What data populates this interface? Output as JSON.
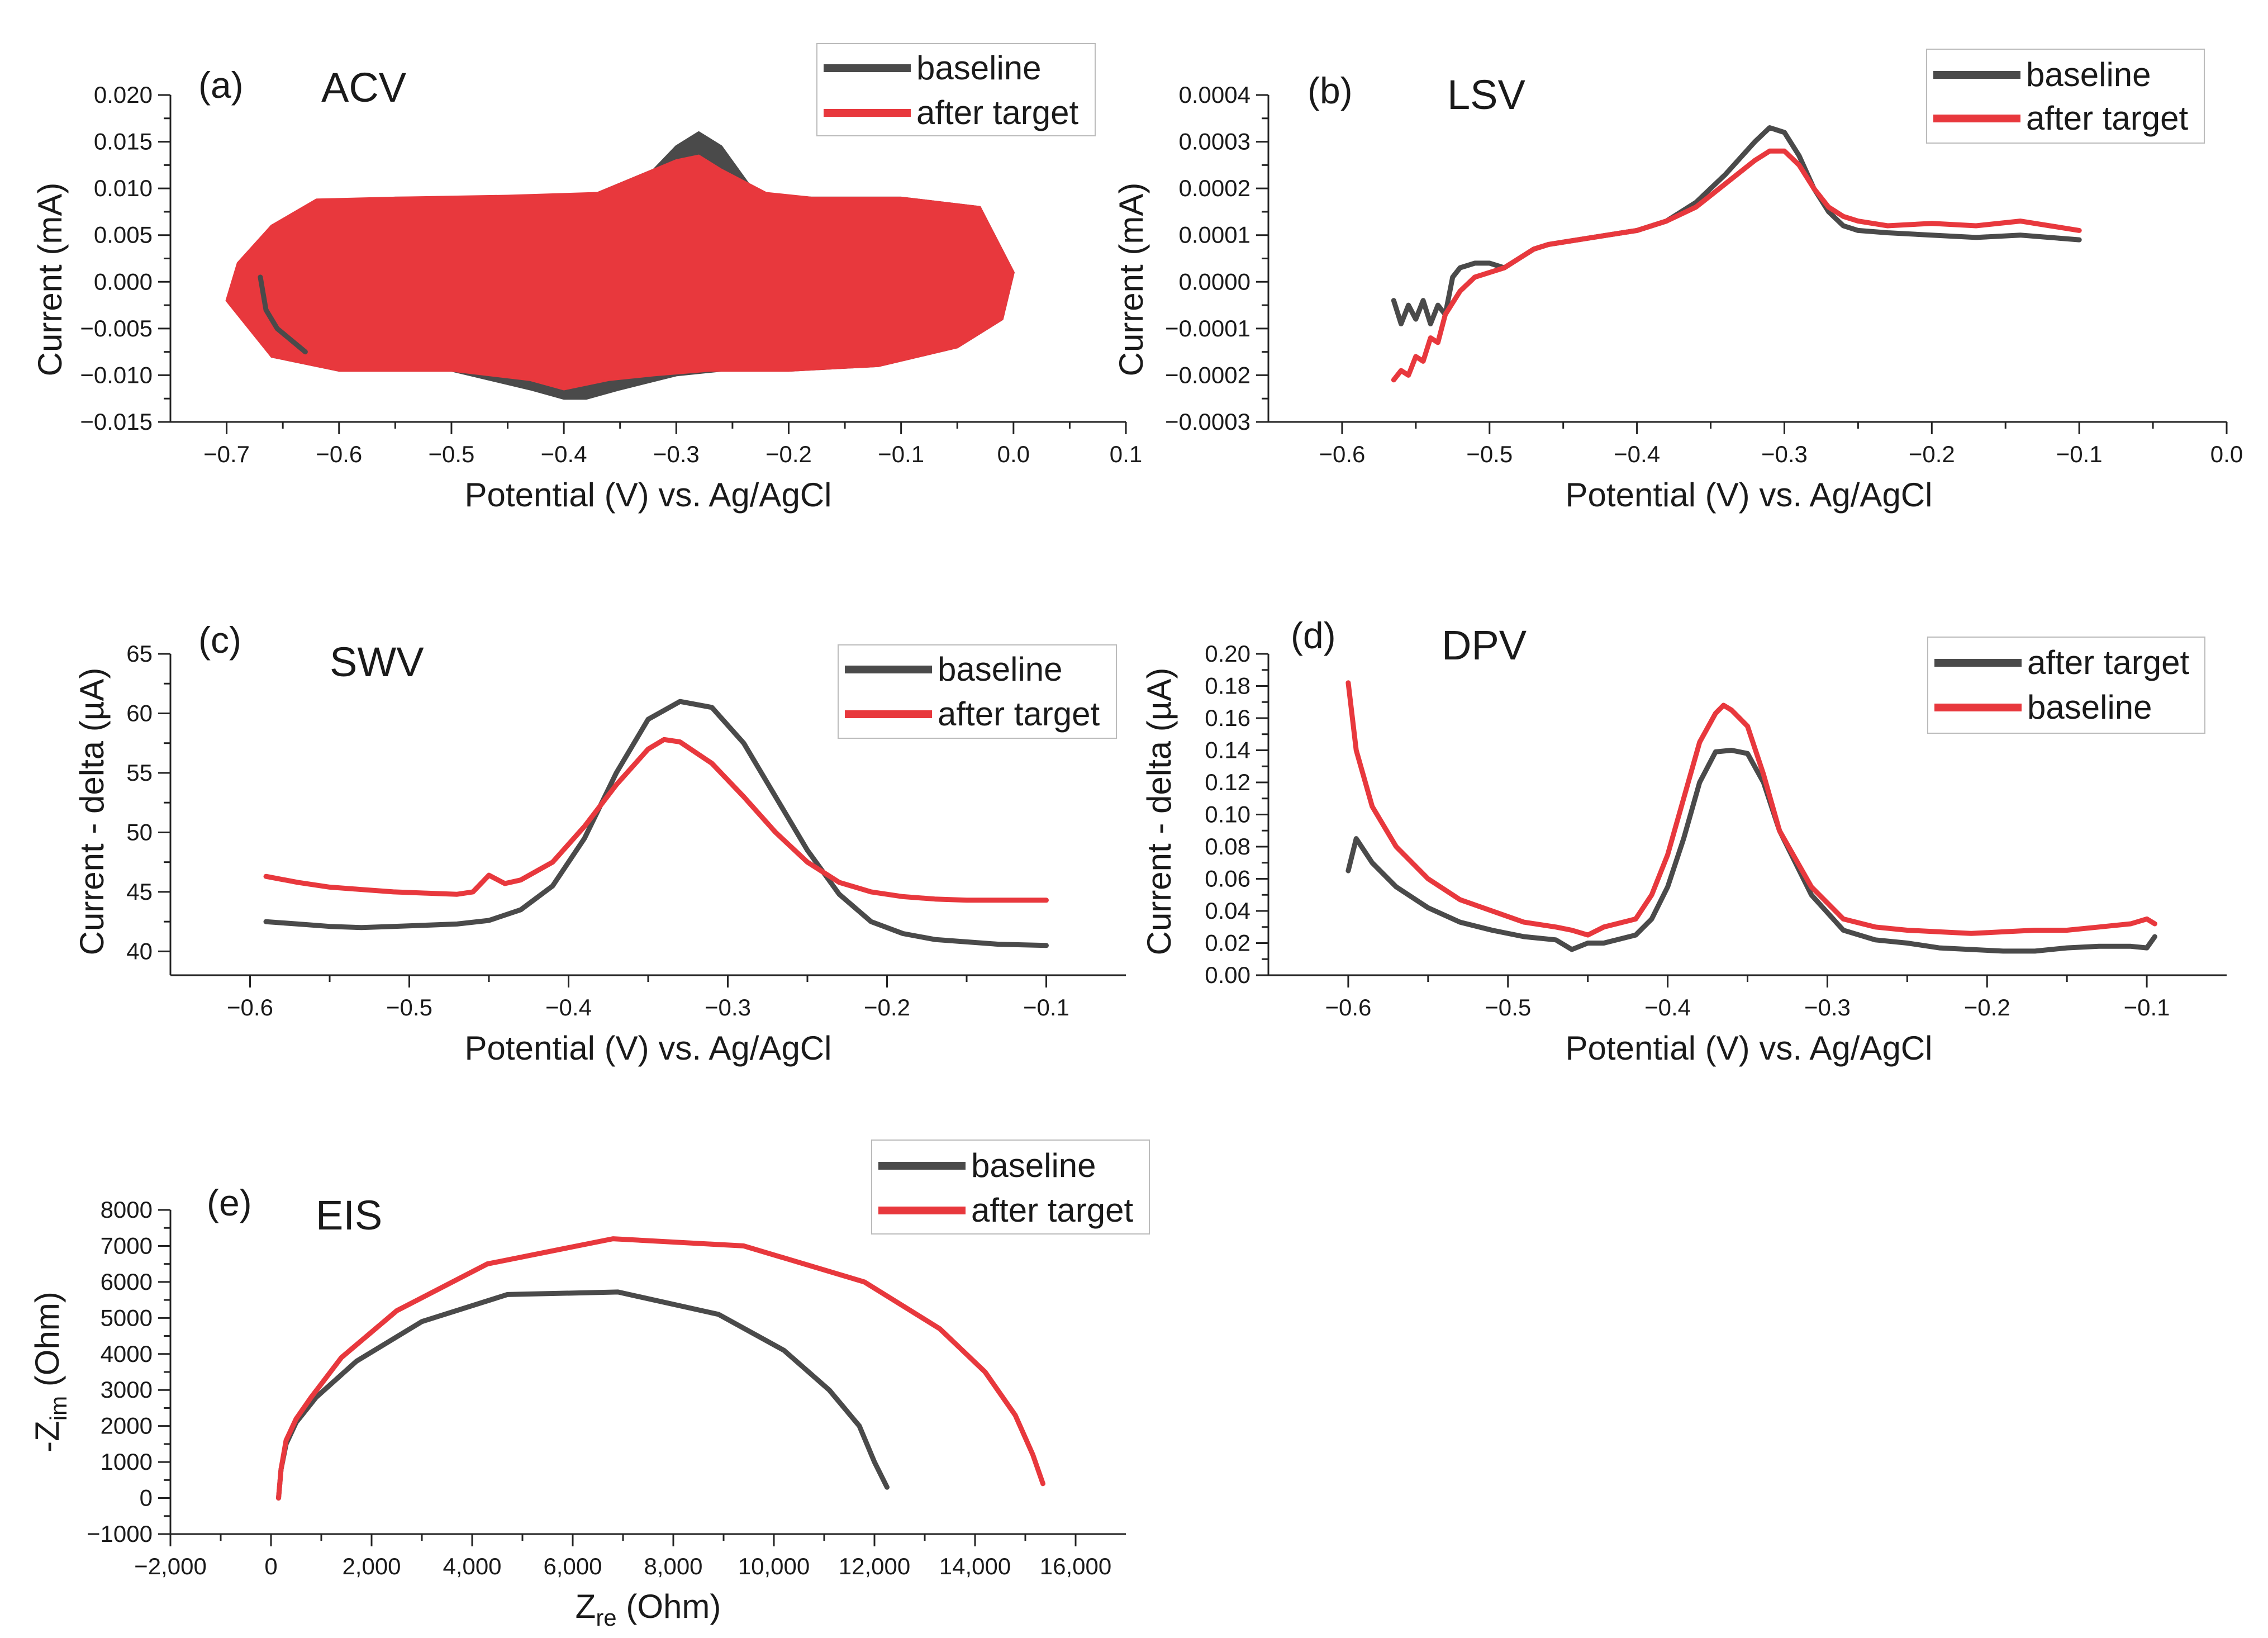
{
  "colors": {
    "baseline": "#4a4a4a",
    "after_target": "#e8383d",
    "axis": "#222222"
  },
  "chart_data": [
    {
      "id": "a",
      "type": "line",
      "panel_label": "(a)",
      "title": "ACV",
      "xlabel": "Potential (V) vs. Ag/AgCl",
      "ylabel": "Current (mA)",
      "xlim": [
        -0.75,
        0.1
      ],
      "ylim": [
        -0.015,
        0.02
      ],
      "xticks": [
        -0.7,
        -0.6,
        -0.5,
        -0.4,
        -0.3,
        -0.2,
        -0.1,
        0.0,
        0.1
      ],
      "xtick_labels": [
        "−0.7",
        "−0.6",
        "−0.5",
        "−0.4",
        "−0.3",
        "−0.2",
        "−0.1",
        "0.0",
        "0.1"
      ],
      "yticks": [
        -0.015,
        -0.01,
        -0.005,
        0,
        0.005,
        0.01,
        0.015,
        0.02
      ],
      "ytick_labels": [
        "−0.015",
        "−0.010",
        "−0.005",
        "0.000",
        "0.005",
        "0.010",
        "0.015",
        "0.020"
      ],
      "legend": [
        "baseline",
        "after target"
      ],
      "series": [
        {
          "name": "baseline",
          "color_key": "baseline",
          "fill": true,
          "x": [
            -0.69,
            -0.68,
            -0.66,
            -0.62,
            -0.55,
            -0.45,
            -0.37,
            -0.32,
            -0.3,
            -0.28,
            -0.26,
            -0.23,
            -0.18,
            -0.1,
            -0.03,
            0.0,
            -0.01,
            -0.05,
            -0.12,
            -0.2,
            -0.26,
            -0.3,
            -0.35,
            -0.38,
            -0.4,
            -0.43,
            -0.5,
            -0.6,
            -0.66,
            -0.69
          ],
          "y": [
            -0.002,
            0.003,
            0.006,
            0.0085,
            0.009,
            0.009,
            0.0095,
            0.012,
            0.0145,
            0.016,
            0.0145,
            0.0095,
            0.009,
            0.009,
            0.008,
            0.001,
            -0.004,
            -0.007,
            -0.009,
            -0.0095,
            -0.0095,
            -0.01,
            -0.0115,
            -0.0125,
            -0.0125,
            -0.0115,
            -0.0095,
            -0.0095,
            -0.008,
            -0.002
          ]
        },
        {
          "name": "after target",
          "color_key": "after_target",
          "fill": true,
          "x": [
            -0.7,
            -0.69,
            -0.66,
            -0.62,
            -0.55,
            -0.45,
            -0.37,
            -0.33,
            -0.3,
            -0.28,
            -0.26,
            -0.22,
            -0.18,
            -0.1,
            -0.03,
            0.0,
            -0.01,
            -0.05,
            -0.12,
            -0.2,
            -0.27,
            -0.32,
            -0.36,
            -0.4,
            -0.43,
            -0.5,
            -0.6,
            -0.66,
            -0.7
          ],
          "y": [
            -0.002,
            0.002,
            0.006,
            0.0088,
            0.009,
            0.0092,
            0.0095,
            0.0115,
            0.013,
            0.0135,
            0.012,
            0.0095,
            0.009,
            0.009,
            0.008,
            0.001,
            -0.004,
            -0.007,
            -0.009,
            -0.0095,
            -0.0095,
            -0.01,
            -0.0105,
            -0.0115,
            -0.0105,
            -0.0095,
            -0.0095,
            -0.008,
            -0.002
          ]
        },
        {
          "name": "baseline",
          "color_key": "baseline",
          "fill": false,
          "x": [
            -0.67,
            -0.665,
            -0.655,
            -0.645,
            -0.63
          ],
          "y": [
            0.0005,
            -0.003,
            -0.005,
            -0.006,
            -0.0075
          ]
        }
      ]
    },
    {
      "id": "b",
      "type": "line",
      "panel_label": "(b)",
      "title": "LSV",
      "xlabel": "Potential (V) vs. Ag/AgCl",
      "ylabel": "Current (mA)",
      "xlim": [
        -0.65,
        0.0
      ],
      "ylim": [
        -0.0003,
        0.0004
      ],
      "xticks": [
        -0.6,
        -0.5,
        -0.4,
        -0.3,
        -0.2,
        -0.1,
        0.0
      ],
      "xtick_labels": [
        "−0.6",
        "−0.5",
        "−0.4",
        "−0.3",
        "−0.2",
        "−0.1",
        "0.0"
      ],
      "yticks": [
        -0.0003,
        -0.0002,
        -0.0001,
        0,
        0.0001,
        0.0002,
        0.0003,
        0.0004
      ],
      "ytick_labels": [
        "−0.0003",
        "−0.0002",
        "−0.0001",
        "0.0000",
        "0.0001",
        "0.0002",
        "0.0003",
        "0.0004"
      ],
      "legend": [
        "baseline",
        "after target"
      ],
      "series": [
        {
          "name": "baseline",
          "color_key": "baseline",
          "x": [
            -0.565,
            -0.56,
            -0.555,
            -0.55,
            -0.545,
            -0.54,
            -0.535,
            -0.53,
            -0.525,
            -0.52,
            -0.51,
            -0.5,
            -0.49,
            -0.48,
            -0.47,
            -0.46,
            -0.44,
            -0.42,
            -0.4,
            -0.38,
            -0.36,
            -0.34,
            -0.32,
            -0.31,
            -0.3,
            -0.29,
            -0.28,
            -0.27,
            -0.26,
            -0.25,
            -0.23,
            -0.2,
            -0.17,
            -0.14,
            -0.12,
            -0.1
          ],
          "y": [
            -4e-05,
            -9e-05,
            -5e-05,
            -8e-05,
            -4e-05,
            -9e-05,
            -5e-05,
            -7e-05,
            1e-05,
            3e-05,
            4e-05,
            4e-05,
            3e-05,
            5e-05,
            7e-05,
            8e-05,
            9e-05,
            0.0001,
            0.00011,
            0.00013,
            0.00017,
            0.00023,
            0.0003,
            0.00033,
            0.00032,
            0.00027,
            0.0002,
            0.00015,
            0.00012,
            0.00011,
            0.000105,
            0.0001,
            9.5e-05,
            0.0001,
            9.5e-05,
            9e-05
          ]
        },
        {
          "name": "after target",
          "color_key": "after_target",
          "x": [
            -0.565,
            -0.56,
            -0.555,
            -0.55,
            -0.545,
            -0.54,
            -0.535,
            -0.53,
            -0.52,
            -0.51,
            -0.5,
            -0.49,
            -0.48,
            -0.47,
            -0.46,
            -0.44,
            -0.42,
            -0.4,
            -0.38,
            -0.36,
            -0.34,
            -0.32,
            -0.31,
            -0.3,
            -0.29,
            -0.28,
            -0.27,
            -0.26,
            -0.25,
            -0.23,
            -0.2,
            -0.17,
            -0.14,
            -0.12,
            -0.1
          ],
          "y": [
            -0.00021,
            -0.00019,
            -0.0002,
            -0.00016,
            -0.00017,
            -0.00012,
            -0.00013,
            -7e-05,
            -2e-05,
            1e-05,
            2e-05,
            3e-05,
            5e-05,
            7e-05,
            8e-05,
            9e-05,
            0.0001,
            0.00011,
            0.00013,
            0.00016,
            0.00021,
            0.00026,
            0.00028,
            0.00028,
            0.00025,
            0.0002,
            0.00016,
            0.00014,
            0.00013,
            0.00012,
            0.000125,
            0.00012,
            0.00013,
            0.00012,
            0.00011
          ]
        }
      ]
    },
    {
      "id": "c",
      "type": "line",
      "panel_label": "(c)",
      "title": "SWV",
      "xlabel": "Potential (V) vs. Ag/AgCl",
      "ylabel": "Current - delta (µA)",
      "xlim": [
        -0.65,
        -0.05
      ],
      "ylim": [
        38,
        65
      ],
      "xticks": [
        -0.6,
        -0.5,
        -0.4,
        -0.3,
        -0.2,
        -0.1
      ],
      "xtick_labels": [
        "−0.6",
        "−0.5",
        "−0.4",
        "−0.3",
        "−0.2",
        "−0.1"
      ],
      "yticks": [
        40,
        45,
        50,
        55,
        60,
        65
      ],
      "ytick_labels": [
        "40",
        "45",
        "50",
        "55",
        "60",
        "65"
      ],
      "legend": [
        "baseline",
        "after target"
      ],
      "series": [
        {
          "name": "baseline",
          "color_key": "baseline",
          "x": [
            -0.59,
            -0.57,
            -0.55,
            -0.53,
            -0.51,
            -0.49,
            -0.47,
            -0.45,
            -0.43,
            -0.41,
            -0.39,
            -0.37,
            -0.35,
            -0.33,
            -0.31,
            -0.29,
            -0.27,
            -0.25,
            -0.23,
            -0.21,
            -0.19,
            -0.17,
            -0.15,
            -0.13,
            -0.1
          ],
          "y": [
            42.5,
            42.3,
            42.1,
            42.0,
            42.1,
            42.2,
            42.3,
            42.6,
            43.5,
            45.5,
            49.5,
            55.0,
            59.5,
            61.0,
            60.5,
            57.5,
            53.0,
            48.5,
            44.8,
            42.5,
            41.5,
            41.0,
            40.8,
            40.6,
            40.5
          ]
        },
        {
          "name": "after target",
          "color_key": "after_target",
          "x": [
            -0.59,
            -0.57,
            -0.55,
            -0.53,
            -0.51,
            -0.49,
            -0.47,
            -0.46,
            -0.45,
            -0.44,
            -0.43,
            -0.41,
            -0.39,
            -0.37,
            -0.35,
            -0.34,
            -0.33,
            -0.31,
            -0.29,
            -0.27,
            -0.25,
            -0.23,
            -0.21,
            -0.19,
            -0.17,
            -0.15,
            -0.13,
            -0.1
          ],
          "y": [
            46.3,
            45.8,
            45.4,
            45.2,
            45.0,
            44.9,
            44.8,
            45.0,
            46.4,
            45.7,
            46.0,
            47.5,
            50.5,
            54.0,
            57.0,
            57.8,
            57.6,
            55.8,
            53.0,
            50.0,
            47.5,
            45.8,
            45.0,
            44.6,
            44.4,
            44.3,
            44.3,
            44.3
          ]
        }
      ]
    },
    {
      "id": "d",
      "type": "line",
      "panel_label": "(d)",
      "title": "DPV",
      "xlabel": "Potential (V) vs. Ag/AgCl",
      "ylabel": "Current - delta (µA)",
      "xlim": [
        -0.65,
        -0.05
      ],
      "ylim": [
        0.0,
        0.2
      ],
      "xticks": [
        -0.6,
        -0.5,
        -0.4,
        -0.3,
        -0.2,
        -0.1
      ],
      "xtick_labels": [
        "−0.6",
        "−0.5",
        "−0.4",
        "−0.3",
        "−0.2",
        "−0.1"
      ],
      "yticks": [
        0.0,
        0.02,
        0.04,
        0.06,
        0.08,
        0.1,
        0.12,
        0.14,
        0.16,
        0.18,
        0.2
      ],
      "ytick_labels": [
        "0.00",
        "0.02",
        "0.04",
        "0.06",
        "0.08",
        "0.10",
        "0.12",
        "0.14",
        "0.16",
        "0.18",
        "0.20"
      ],
      "legend": [
        "after target",
        "baseline"
      ],
      "series": [
        {
          "name": "after target",
          "color_key": "baseline",
          "x": [
            -0.6,
            -0.595,
            -0.585,
            -0.57,
            -0.55,
            -0.53,
            -0.51,
            -0.49,
            -0.47,
            -0.46,
            -0.45,
            -0.44,
            -0.42,
            -0.41,
            -0.4,
            -0.39,
            -0.38,
            -0.37,
            -0.36,
            -0.35,
            -0.34,
            -0.33,
            -0.31,
            -0.29,
            -0.27,
            -0.25,
            -0.23,
            -0.21,
            -0.19,
            -0.17,
            -0.15,
            -0.13,
            -0.11,
            -0.1,
            -0.095
          ],
          "y": [
            0.065,
            0.085,
            0.07,
            0.055,
            0.042,
            0.033,
            0.028,
            0.024,
            0.022,
            0.016,
            0.02,
            0.02,
            0.025,
            0.035,
            0.055,
            0.085,
            0.12,
            0.139,
            0.14,
            0.138,
            0.12,
            0.09,
            0.05,
            0.028,
            0.022,
            0.02,
            0.017,
            0.016,
            0.015,
            0.015,
            0.017,
            0.018,
            0.018,
            0.017,
            0.024
          ]
        },
        {
          "name": "baseline",
          "color_key": "after_target",
          "x": [
            -0.6,
            -0.595,
            -0.585,
            -0.57,
            -0.55,
            -0.53,
            -0.51,
            -0.49,
            -0.47,
            -0.46,
            -0.45,
            -0.44,
            -0.42,
            -0.41,
            -0.4,
            -0.39,
            -0.38,
            -0.37,
            -0.365,
            -0.36,
            -0.35,
            -0.34,
            -0.33,
            -0.31,
            -0.29,
            -0.27,
            -0.25,
            -0.23,
            -0.21,
            -0.19,
            -0.17,
            -0.15,
            -0.13,
            -0.11,
            -0.1,
            -0.095
          ],
          "y": [
            0.182,
            0.14,
            0.105,
            0.08,
            0.06,
            0.047,
            0.04,
            0.033,
            0.03,
            0.028,
            0.025,
            0.03,
            0.035,
            0.05,
            0.075,
            0.11,
            0.145,
            0.163,
            0.168,
            0.165,
            0.155,
            0.125,
            0.09,
            0.055,
            0.035,
            0.03,
            0.028,
            0.027,
            0.026,
            0.027,
            0.028,
            0.028,
            0.03,
            0.032,
            0.035,
            0.032
          ]
        }
      ]
    },
    {
      "id": "e",
      "type": "line",
      "panel_label": "(e)",
      "title": "EIS",
      "xlabel_main": "Z",
      "xlabel_sub": "re",
      "xlabel_rest": " (Ohm)",
      "ylabel_main": "-Z",
      "ylabel_sub": "im",
      "ylabel_rest": " (Ohm)",
      "xlim": [
        -2000,
        17000
      ],
      "ylim": [
        -1000,
        8000
      ],
      "xticks": [
        -2000,
        0,
        2000,
        4000,
        6000,
        8000,
        10000,
        12000,
        14000,
        16000
      ],
      "xtick_labels": [
        "−2,000",
        "0",
        "2,000",
        "4,000",
        "6,000",
        "8,000",
        "10,000",
        "12,000",
        "14,000",
        "16,000"
      ],
      "yticks": [
        -1000,
        0,
        1000,
        2000,
        3000,
        4000,
        5000,
        6000,
        7000,
        8000
      ],
      "ytick_labels": [
        "−1000",
        "0",
        "1000",
        "2000",
        "3000",
        "4000",
        "5000",
        "6000",
        "7000",
        "8000"
      ],
      "legend": [
        "baseline",
        "after target"
      ],
      "series": [
        {
          "name": "baseline",
          "color_key": "baseline",
          "x": [
            150,
            200,
            300,
            500,
            900,
            1700,
            3000,
            4700,
            6900,
            8900,
            10200,
            11100,
            11700,
            12000,
            12250
          ],
          "y": [
            0,
            800,
            1500,
            2100,
            2800,
            3800,
            4900,
            5650,
            5720,
            5100,
            4100,
            3000,
            2000,
            1000,
            300
          ]
        },
        {
          "name": "after target",
          "color_key": "after_target",
          "x": [
            150,
            200,
            300,
            500,
            800,
            1400,
            2500,
            4300,
            6800,
            9400,
            11800,
            13300,
            14200,
            14800,
            15150,
            15350
          ],
          "y": [
            0,
            800,
            1600,
            2200,
            2800,
            3900,
            5200,
            6500,
            7200,
            7000,
            6000,
            4700,
            3500,
            2300,
            1200,
            400
          ]
        }
      ]
    }
  ]
}
